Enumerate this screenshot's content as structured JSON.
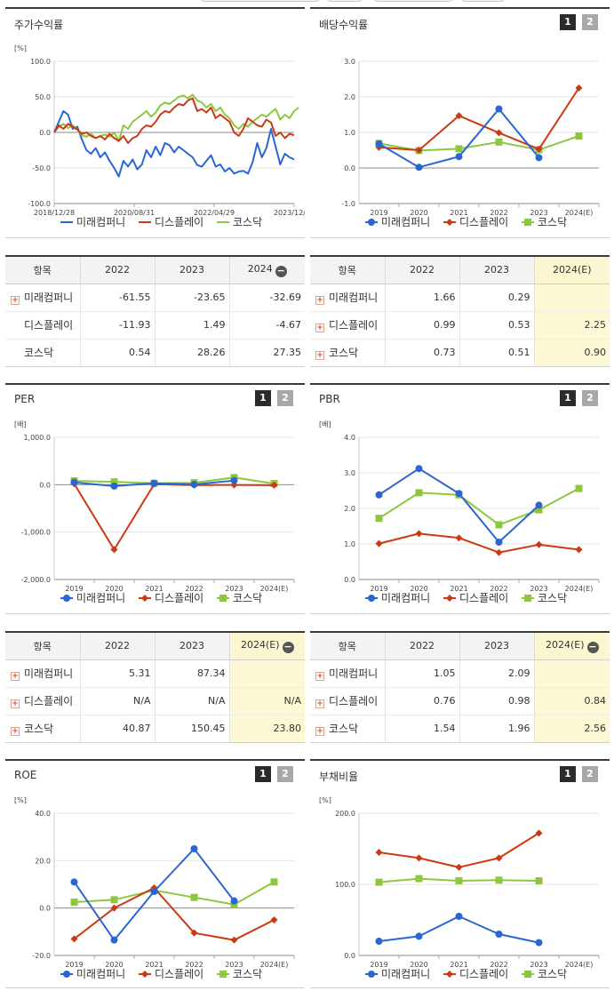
{
  "colors": {
    "mirae": "#2a66d1",
    "display": "#cc3a12",
    "kosdaq": "#8dc63f"
  },
  "legend": [
    "미래컴퍼니",
    "디스플레이",
    "코스닥"
  ],
  "stock_return": {
    "title": "주가수익률",
    "unit": "[%]",
    "table": {
      "headers": [
        "항목",
        "2022",
        "2023",
        "2024"
      ],
      "rows": [
        {
          "name": "미래컴퍼니",
          "values": [
            "-61.55",
            "-23.65",
            "-32.69"
          ]
        },
        {
          "name": "디스플레이",
          "values": [
            "-11.93",
            "1.49",
            "-4.67"
          ]
        },
        {
          "name": "코스닥",
          "values": [
            "0.54",
            "28.26",
            "27.35"
          ]
        }
      ]
    }
  },
  "dividend": {
    "title": "배당수익률",
    "buttons": [
      "1",
      "2"
    ],
    "table": {
      "headers": [
        "항목",
        "2022",
        "2023",
        "2024(E)"
      ],
      "rows": [
        {
          "name": "미래컴퍼니",
          "values": [
            "1.66",
            "0.29",
            ""
          ]
        },
        {
          "name": "디스플레이",
          "values": [
            "0.99",
            "0.53",
            "2.25"
          ]
        },
        {
          "name": "코스닥",
          "values": [
            "0.73",
            "0.51",
            "0.90"
          ]
        }
      ]
    }
  },
  "per": {
    "title": "PER",
    "buttons": [
      "1",
      "2"
    ],
    "table": {
      "headers": [
        "항목",
        "2022",
        "2023",
        "2024(E)"
      ],
      "rows": [
        {
          "name": "미래컴퍼니",
          "values": [
            "5.31",
            "87.34",
            ""
          ]
        },
        {
          "name": "디스플레이",
          "values": [
            "N/A",
            "N/A",
            "N/A"
          ]
        },
        {
          "name": "코스닥",
          "values": [
            "40.87",
            "150.45",
            "23.80"
          ]
        }
      ]
    }
  },
  "pbr": {
    "title": "PBR",
    "buttons": [
      "1",
      "2"
    ],
    "table": {
      "headers": [
        "항목",
        "2022",
        "2023",
        "2024(E)"
      ],
      "rows": [
        {
          "name": "미래컴퍼니",
          "values": [
            "1.05",
            "2.09",
            ""
          ]
        },
        {
          "name": "디스플레이",
          "values": [
            "0.76",
            "0.98",
            "0.84"
          ]
        },
        {
          "name": "코스닥",
          "values": [
            "1.54",
            "1.96",
            "2.56"
          ]
        }
      ]
    }
  },
  "roe": {
    "title": "ROE",
    "buttons": [
      "1",
      "2"
    ]
  },
  "debt": {
    "title": "부채비율",
    "buttons": [
      "1",
      "2"
    ]
  },
  "chart_data": [
    {
      "id": "stock_return",
      "type": "line",
      "title": "주가수익률",
      "ylabel": "[%]",
      "ylim": [
        -100,
        100
      ],
      "yticks": [
        "100.0",
        "50.0",
        "0.0",
        "-50.0",
        "-100.0"
      ],
      "xticks": [
        "2018/12/28",
        "2020/08/31",
        "2022/04/29",
        "2023/12/28"
      ],
      "series": [
        {
          "name": "미래컴퍼니",
          "values": [
            0,
            15,
            30,
            25,
            5,
            8,
            -10,
            -25,
            -30,
            -22,
            -35,
            -28,
            -40,
            -50,
            -62,
            -40,
            -48,
            -38,
            -52,
            -45,
            -25,
            -35,
            -20,
            -32,
            -15,
            -18,
            -28,
            -20,
            -25,
            -30,
            -35,
            -46,
            -48,
            -40,
            -32,
            -48,
            -45,
            -55,
            -50,
            -58,
            -55,
            -54,
            -58,
            -42,
            -15,
            -35,
            -22,
            5,
            -20,
            -45,
            -30,
            -35,
            -38
          ]
        },
        {
          "name": "디스플레이",
          "values": [
            0,
            10,
            5,
            12,
            8,
            4,
            -2,
            0,
            -5,
            -8,
            -5,
            -10,
            -2,
            -8,
            -12,
            -5,
            -15,
            -8,
            -5,
            5,
            10,
            8,
            15,
            25,
            30,
            28,
            35,
            40,
            38,
            45,
            48,
            30,
            33,
            28,
            35,
            20,
            25,
            20,
            15,
            0,
            -5,
            5,
            20,
            15,
            10,
            8,
            18,
            14,
            -5,
            0,
            -8,
            -2,
            -4
          ]
        },
        {
          "name": "코스닥",
          "values": [
            0,
            8,
            12,
            6,
            10,
            4,
            -4,
            -6,
            -2,
            -8,
            -5,
            -3,
            -6,
            0,
            -12,
            10,
            5,
            15,
            20,
            25,
            30,
            22,
            28,
            38,
            42,
            40,
            45,
            50,
            52,
            48,
            53,
            45,
            42,
            35,
            40,
            30,
            35,
            25,
            20,
            10,
            5,
            12,
            8,
            15,
            20,
            25,
            22,
            28,
            33,
            18,
            25,
            20,
            30,
            35
          ]
        }
      ]
    },
    {
      "id": "dividend",
      "type": "line",
      "title": "배당수익률",
      "ylabel": "",
      "ylim": [
        -1,
        3
      ],
      "yticks": [
        "3.0",
        "2.0",
        "1.0",
        "0.0",
        "-1.0"
      ],
      "categories": [
        "2019",
        "2020",
        "2021",
        "2022",
        "2023",
        "2024(E)"
      ],
      "series": [
        {
          "name": "미래컴퍼니",
          "values": [
            0.68,
            0.02,
            0.32,
            1.66,
            0.29,
            null
          ]
        },
        {
          "name": "디스플레이",
          "values": [
            0.58,
            0.5,
            1.47,
            0.99,
            0.53,
            2.25
          ]
        },
        {
          "name": "코스닥",
          "values": [
            0.69,
            0.49,
            0.54,
            0.73,
            0.51,
            0.9
          ]
        }
      ]
    },
    {
      "id": "per",
      "type": "line",
      "title": "PER",
      "ylabel": "[배]",
      "ylim": [
        -2000,
        1000
      ],
      "yticks": [
        "1,000.0",
        "0.0",
        "-1,000.0",
        "-2,000.0"
      ],
      "categories": [
        "2019",
        "2020",
        "2021",
        "2022",
        "2023",
        "2024(E)"
      ],
      "series": [
        {
          "name": "미래컴퍼니",
          "values": [
            50,
            -30,
            30,
            5.31,
            87.34,
            null
          ]
        },
        {
          "name": "디스플레이",
          "values": [
            20,
            -1370,
            10,
            -10,
            -5,
            -10
          ]
        },
        {
          "name": "코스닥",
          "values": [
            80,
            60,
            30,
            40.87,
            150.45,
            23.8
          ]
        }
      ]
    },
    {
      "id": "pbr",
      "type": "line",
      "title": "PBR",
      "ylabel": "[배]",
      "ylim": [
        0,
        4
      ],
      "yticks": [
        "4.0",
        "3.0",
        "2.0",
        "1.0",
        "0.0"
      ],
      "categories": [
        "2019",
        "2020",
        "2021",
        "2022",
        "2023",
        "2024(E)"
      ],
      "series": [
        {
          "name": "미래컴퍼니",
          "values": [
            2.38,
            3.12,
            2.42,
            1.05,
            2.09,
            null
          ]
        },
        {
          "name": "디스플레이",
          "values": [
            1.01,
            1.29,
            1.17,
            0.76,
            0.98,
            0.84
          ]
        },
        {
          "name": "코스닥",
          "values": [
            1.72,
            2.44,
            2.38,
            1.54,
            1.96,
            2.56
          ]
        }
      ]
    },
    {
      "id": "roe",
      "type": "line",
      "title": "ROE",
      "ylabel": "[%]",
      "ylim": [
        -20,
        40
      ],
      "yticks": [
        "40.0",
        "20.0",
        "0.0",
        "-20.0"
      ],
      "categories": [
        "2019",
        "2020",
        "2021",
        "2022",
        "2023",
        "2024(E)"
      ],
      "series": [
        {
          "name": "미래컴퍼니",
          "values": [
            11,
            -13.5,
            7,
            25,
            3,
            null
          ]
        },
        {
          "name": "디스플레이",
          "values": [
            -13,
            0,
            8.5,
            -10.5,
            -13.5,
            -5
          ]
        },
        {
          "name": "코스닥",
          "values": [
            2.5,
            3.5,
            7.5,
            4.5,
            1.5,
            11
          ]
        }
      ]
    },
    {
      "id": "debt",
      "type": "line",
      "title": "부채비율",
      "ylabel": "[%]",
      "ylim": [
        0,
        200
      ],
      "yticks": [
        "200.0",
        "100.0",
        "0.0"
      ],
      "categories": [
        "2019",
        "2020",
        "2021",
        "2022",
        "2023",
        "2024(E)"
      ],
      "series": [
        {
          "name": "미래컴퍼니",
          "values": [
            20,
            27,
            55,
            30,
            18,
            null
          ]
        },
        {
          "name": "디스플레이",
          "values": [
            145,
            137,
            124,
            137,
            172,
            null
          ]
        },
        {
          "name": "코스닥",
          "values": [
            103,
            108,
            105,
            106,
            105,
            null
          ]
        }
      ]
    }
  ]
}
